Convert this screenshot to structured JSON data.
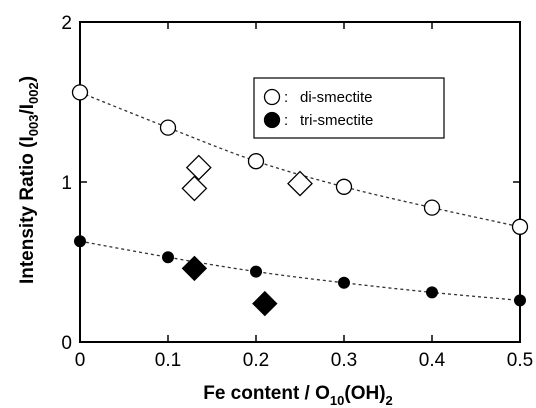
{
  "chart_data": {
    "type": "scatter",
    "xlabel": {
      "main": "Fe content / O",
      "sub1": "10",
      "mid": "(OH)",
      "sub2": "2"
    },
    "ylabel": {
      "main": "Intensity Ratio (I",
      "sub1": "003",
      "mid": "/I",
      "sub2": "002",
      "end": ")"
    },
    "xlim": [
      0,
      0.5
    ],
    "ylim": [
      0,
      2
    ],
    "x_ticks": [
      {
        "value": 0,
        "label": "0"
      },
      {
        "value": 0.1,
        "label": "0.1"
      },
      {
        "value": 0.2,
        "label": "0.2"
      },
      {
        "value": 0.3,
        "label": "0.3"
      },
      {
        "value": 0.4,
        "label": "0.4"
      },
      {
        "value": 0.5,
        "label": "0.5"
      }
    ],
    "y_ticks": [
      {
        "value": 0,
        "label": "0"
      },
      {
        "value": 1,
        "label": "1"
      },
      {
        "value": 2,
        "label": "2"
      }
    ],
    "grid": false,
    "legend_position": "top-right",
    "legend": [
      {
        "symbol": "open-circle",
        "separator": ":",
        "label": "di-smectite"
      },
      {
        "symbol": "filled-circle",
        "separator": ":",
        "label": "tri-smectite"
      }
    ],
    "series": [
      {
        "name": "di-smectite",
        "marker": "open-circle",
        "points": [
          [
            0,
            1.56
          ],
          [
            0.1,
            1.34
          ],
          [
            0.2,
            1.13
          ],
          [
            0.3,
            0.97
          ],
          [
            0.4,
            0.84
          ],
          [
            0.5,
            0.72
          ]
        ]
      },
      {
        "name": "tri-smectite",
        "marker": "filled-circle",
        "points": [
          [
            0,
            0.63
          ],
          [
            0.1,
            0.53
          ],
          [
            0.2,
            0.44
          ],
          [
            0.3,
            0.37
          ],
          [
            0.4,
            0.31
          ],
          [
            0.5,
            0.26
          ]
        ]
      },
      {
        "marker": "open-diamond",
        "points": [
          [
            0.13,
            0.96
          ],
          [
            0.135,
            1.09
          ],
          [
            0.25,
            0.99
          ]
        ]
      },
      {
        "marker": "filled-diamond",
        "points": [
          [
            0.13,
            0.46
          ],
          [
            0.21,
            0.24
          ]
        ]
      }
    ],
    "trend_lines": [
      {
        "style": "dashed",
        "points": [
          [
            0,
            1.56
          ],
          [
            0.1,
            1.34
          ],
          [
            0.2,
            1.13
          ],
          [
            0.3,
            0.97
          ],
          [
            0.4,
            0.84
          ],
          [
            0.5,
            0.72
          ]
        ]
      },
      {
        "style": "dashed",
        "points": [
          [
            0,
            0.63
          ],
          [
            0.1,
            0.53
          ],
          [
            0.2,
            0.44
          ],
          [
            0.3,
            0.37
          ],
          [
            0.4,
            0.31
          ],
          [
            0.5,
            0.26
          ]
        ]
      }
    ],
    "colors": {
      "ink": "#000000",
      "background": "#ffffff",
      "trend": "#333333"
    }
  }
}
